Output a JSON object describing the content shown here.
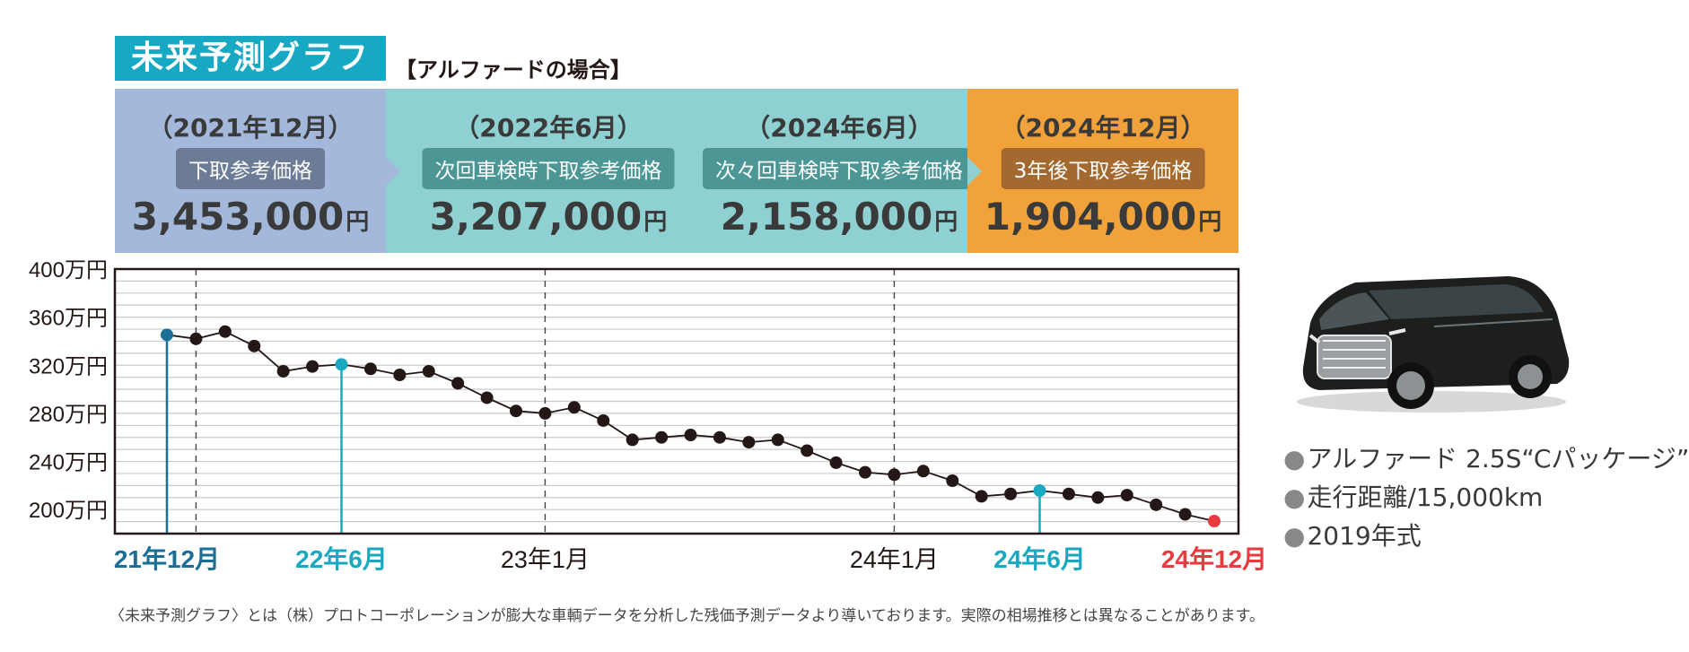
{
  "header": {
    "title": "未来予測グラフ",
    "subtitle": "【アルファードの場合】"
  },
  "banners": [
    {
      "period": "（2021年12月）",
      "label": "下取参考価格",
      "price": "3,453,000",
      "unit": "円"
    },
    {
      "period": "（2022年6月）",
      "label": "次回車検時下取参考価格",
      "price": "3,207,000",
      "unit": "円"
    },
    {
      "period": "（2024年6月）",
      "label": "次々回車検時下取参考価格",
      "price": "2,158,000",
      "unit": "円"
    },
    {
      "period": "（2024年12月）",
      "label": "3年後下取参考価格",
      "price": "1,904,000",
      "unit": "円"
    }
  ],
  "specs": [
    "アルファード 2.5S“Cパッケージ”",
    "走行距離/15,000km",
    "2019年式"
  ],
  "footnote": "〈未来予測グラフ〉とは（株）プロトコーポレーションが膨大な車輌データを分析した残価予測データより導いております。実際の相場推移とは異なることがあります。",
  "colors": {
    "accent_blue": "#17a9c4",
    "marker_start": "#1b6f96",
    "marker_mid": "#1aa8c1",
    "marker_end": "#e83a3f",
    "point": "#231815"
  },
  "chart_data": {
    "type": "line",
    "ylabel_unit": "万円",
    "ylim": [
      180,
      400
    ],
    "yticks": [
      200,
      240,
      280,
      320,
      360,
      400
    ],
    "ytick_labels": [
      "200万円",
      "240万円",
      "280万円",
      "320万円",
      "360万円",
      "400万円"
    ],
    "x_labels": [
      {
        "index": 0,
        "text": "21年12月",
        "color": "#1b6f96",
        "bold": true
      },
      {
        "index": 6,
        "text": "22年6月",
        "color": "#1aa8c1",
        "bold": true
      },
      {
        "index": 13,
        "text": "23年1月",
        "color": "#231815",
        "bold": false
      },
      {
        "index": 25,
        "text": "24年1月",
        "color": "#231815",
        "bold": false
      },
      {
        "index": 30,
        "text": "24年6月",
        "color": "#1aa8c1",
        "bold": true
      },
      {
        "index": 36,
        "text": "24年12月",
        "color": "#e83a3f",
        "bold": true
      }
    ],
    "dashed_lines_at_index": [
      1,
      13,
      25
    ],
    "stems": [
      {
        "index": 0,
        "color": "#1b6f96"
      },
      {
        "index": 6,
        "color": "#1aa8c1"
      },
      {
        "index": 30,
        "color": "#1aa8c1"
      }
    ],
    "values": [
      345.3,
      342,
      348,
      336,
      315,
      319,
      320.7,
      317,
      312,
      315,
      305,
      293,
      282,
      280,
      285,
      274,
      258,
      260,
      262,
      260,
      256,
      258,
      249,
      239,
      231,
      229,
      232,
      224,
      211,
      213,
      215.8,
      213,
      210,
      212,
      204,
      196,
      190.4
    ]
  }
}
